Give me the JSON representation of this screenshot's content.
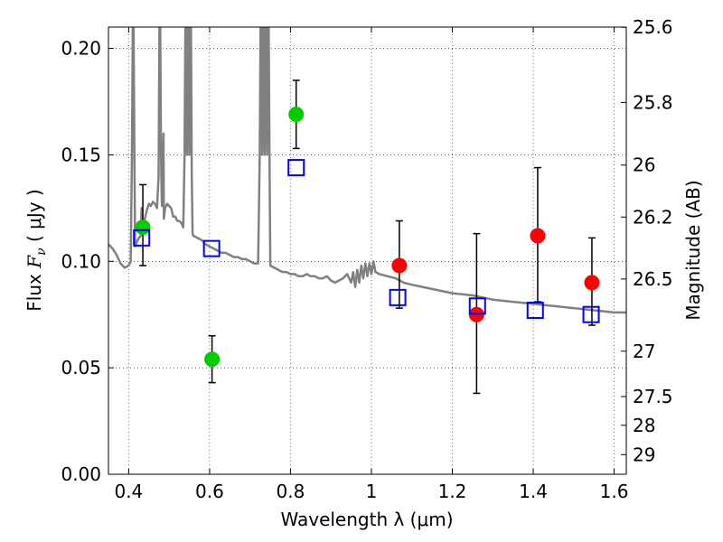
{
  "chart_data": {
    "type": "scatter",
    "title": "",
    "xlabel": "Wavelength  λ (μm)",
    "ylabel_prefix": "Flux  ",
    "ylabel_symbol": "F",
    "ylabel_sub": "ν",
    "ylabel_unit": "  ( μJy )",
    "y2label": "Magnitude (AB)",
    "xlim": [
      0.35,
      1.63
    ],
    "ylim": [
      0.0,
      0.21
    ],
    "grid": true,
    "xticks": [
      0.4,
      0.6,
      0.8,
      1.0,
      1.2,
      1.4,
      1.6
    ],
    "xtick_labels": [
      "0.4",
      "0.6",
      "0.8",
      "1",
      "1.2",
      "1.4",
      "1.6"
    ],
    "yticks": [
      0.0,
      0.05,
      0.1,
      0.15,
      0.2
    ],
    "ytick_labels": [
      "0.00",
      "0.05",
      "0.10",
      "0.15",
      "0.20"
    ],
    "y2ticks": [
      {
        "label": "25.6",
        "flux": 0.2099
      },
      {
        "label": "25.8",
        "flux": 0.1746
      },
      {
        "label": "26",
        "flux": 0.1452
      },
      {
        "label": "26.2",
        "flux": 0.1208
      },
      {
        "label": "26.5",
        "flux": 0.0917
      },
      {
        "label": "27",
        "flux": 0.0578
      },
      {
        "label": "27.5",
        "flux": 0.0365
      },
      {
        "label": "28",
        "flux": 0.023
      },
      {
        "label": "29",
        "flux": 0.0092
      }
    ],
    "colors": {
      "green": "#00cc00",
      "red": "#ff0000",
      "blue": "#0000ff",
      "model": "#808080"
    },
    "series": [
      {
        "marker": "circle",
        "color": "green",
        "points": [
          {
            "x": 0.435,
            "y": 0.116,
            "err_lo": 0.018,
            "err_hi": 0.02
          },
          {
            "x": 0.606,
            "y": 0.054,
            "err_lo": 0.011,
            "err_hi": 0.011
          },
          {
            "x": 0.814,
            "y": 0.169,
            "err_lo": 0.016,
            "err_hi": 0.016
          }
        ]
      },
      {
        "marker": "circle",
        "color": "red",
        "points": [
          {
            "x": 1.069,
            "y": 0.098,
            "err_lo": 0.02,
            "err_hi": 0.021
          },
          {
            "x": 1.26,
            "y": 0.075,
            "err_lo": 0.037,
            "err_hi": 0.038
          },
          {
            "x": 1.411,
            "y": 0.112,
            "err_lo": 0.031,
            "err_hi": 0.032
          },
          {
            "x": 1.545,
            "y": 0.09,
            "err_lo": 0.02,
            "err_hi": 0.021
          }
        ]
      },
      {
        "marker": "open-square",
        "color": "blue",
        "points": [
          {
            "x": 0.432,
            "y": 0.111
          },
          {
            "x": 0.605,
            "y": 0.106
          },
          {
            "x": 0.814,
            "y": 0.144
          },
          {
            "x": 1.065,
            "y": 0.083
          },
          {
            "x": 1.262,
            "y": 0.079
          },
          {
            "x": 1.405,
            "y": 0.077
          },
          {
            "x": 1.543,
            "y": 0.075
          }
        ]
      }
    ],
    "model_spectrum": {
      "color": "model",
      "points": [
        [
          0.35,
          0.108
        ],
        [
          0.36,
          0.106
        ],
        [
          0.37,
          0.103
        ],
        [
          0.38,
          0.099
        ],
        [
          0.39,
          0.097
        ],
        [
          0.4,
          0.098
        ],
        [
          0.405,
          0.1
        ],
        [
          0.408,
          0.15
        ],
        [
          0.41,
          0.21
        ],
        [
          0.412,
          0.21
        ],
        [
          0.414,
          0.15
        ],
        [
          0.416,
          0.107
        ],
        [
          0.42,
          0.109
        ],
        [
          0.425,
          0.111
        ],
        [
          0.43,
          0.112
        ],
        [
          0.432,
          0.125
        ],
        [
          0.434,
          0.116
        ],
        [
          0.44,
          0.12
        ],
        [
          0.445,
          0.124
        ],
        [
          0.45,
          0.127
        ],
        [
          0.455,
          0.126
        ],
        [
          0.46,
          0.128
        ],
        [
          0.465,
          0.127
        ],
        [
          0.47,
          0.125
        ],
        [
          0.474,
          0.14
        ],
        [
          0.476,
          0.21
        ],
        [
          0.478,
          0.21
        ],
        [
          0.48,
          0.15
        ],
        [
          0.482,
          0.126
        ],
        [
          0.486,
          0.16
        ],
        [
          0.487,
          0.12
        ],
        [
          0.49,
          0.125
        ],
        [
          0.495,
          0.127
        ],
        [
          0.5,
          0.126
        ],
        [
          0.505,
          0.125
        ],
        [
          0.51,
          0.121
        ],
        [
          0.515,
          0.121
        ],
        [
          0.52,
          0.119
        ],
        [
          0.525,
          0.119
        ],
        [
          0.53,
          0.118
        ],
        [
          0.535,
          0.116
        ],
        [
          0.538,
          0.15
        ],
        [
          0.54,
          0.21
        ],
        [
          0.542,
          0.21
        ],
        [
          0.544,
          0.15
        ],
        [
          0.546,
          0.21
        ],
        [
          0.548,
          0.21
        ],
        [
          0.55,
          0.15
        ],
        [
          0.552,
          0.21
        ],
        [
          0.554,
          0.21
        ],
        [
          0.556,
          0.14
        ],
        [
          0.558,
          0.113
        ],
        [
          0.56,
          0.112
        ],
        [
          0.57,
          0.111
        ],
        [
          0.58,
          0.11
        ],
        [
          0.59,
          0.108
        ],
        [
          0.6,
          0.107
        ],
        [
          0.61,
          0.106
        ],
        [
          0.62,
          0.105
        ],
        [
          0.63,
          0.104
        ],
        [
          0.64,
          0.104
        ],
        [
          0.65,
          0.103
        ],
        [
          0.66,
          0.102
        ],
        [
          0.67,
          0.102
        ],
        [
          0.68,
          0.101
        ],
        [
          0.69,
          0.101
        ],
        [
          0.7,
          0.1
        ],
        [
          0.71,
          0.099
        ],
        [
          0.72,
          0.099
        ],
        [
          0.724,
          0.15
        ],
        [
          0.726,
          0.21
        ],
        [
          0.728,
          0.21
        ],
        [
          0.73,
          0.15
        ],
        [
          0.732,
          0.21
        ],
        [
          0.734,
          0.21
        ],
        [
          0.736,
          0.15
        ],
        [
          0.738,
          0.21
        ],
        [
          0.74,
          0.21
        ],
        [
          0.742,
          0.15
        ],
        [
          0.744,
          0.21
        ],
        [
          0.746,
          0.21
        ],
        [
          0.748,
          0.15
        ],
        [
          0.75,
          0.098
        ],
        [
          0.76,
          0.097
        ],
        [
          0.77,
          0.096
        ],
        [
          0.78,
          0.095
        ],
        [
          0.79,
          0.095
        ],
        [
          0.8,
          0.094
        ],
        [
          0.81,
          0.094
        ],
        [
          0.82,
          0.093
        ],
        [
          0.83,
          0.093
        ],
        [
          0.84,
          0.094
        ],
        [
          0.85,
          0.093
        ],
        [
          0.86,
          0.093
        ],
        [
          0.87,
          0.092
        ],
        [
          0.88,
          0.092
        ],
        [
          0.89,
          0.093
        ],
        [
          0.9,
          0.091
        ],
        [
          0.91,
          0.09
        ],
        [
          0.92,
          0.091
        ],
        [
          0.93,
          0.092
        ],
        [
          0.94,
          0.094
        ],
        [
          0.95,
          0.09
        ],
        [
          0.955,
          0.095
        ],
        [
          0.96,
          0.088
        ],
        [
          0.965,
          0.096
        ],
        [
          0.97,
          0.09
        ],
        [
          0.975,
          0.098
        ],
        [
          0.98,
          0.092
        ],
        [
          0.985,
          0.099
        ],
        [
          0.99,
          0.093
        ],
        [
          0.995,
          0.099
        ],
        [
          1.0,
          0.094
        ],
        [
          1.005,
          0.1
        ],
        [
          1.01,
          0.095
        ],
        [
          1.02,
          0.094
        ],
        [
          1.04,
          0.093
        ],
        [
          1.06,
          0.092
        ],
        [
          1.08,
          0.09
        ],
        [
          1.1,
          0.089
        ],
        [
          1.15,
          0.087
        ],
        [
          1.2,
          0.085
        ],
        [
          1.25,
          0.084
        ],
        [
          1.3,
          0.082
        ],
        [
          1.35,
          0.081
        ],
        [
          1.4,
          0.08
        ],
        [
          1.45,
          0.079
        ],
        [
          1.5,
          0.078
        ],
        [
          1.55,
          0.077
        ],
        [
          1.6,
          0.076
        ],
        [
          1.63,
          0.076
        ]
      ]
    }
  }
}
